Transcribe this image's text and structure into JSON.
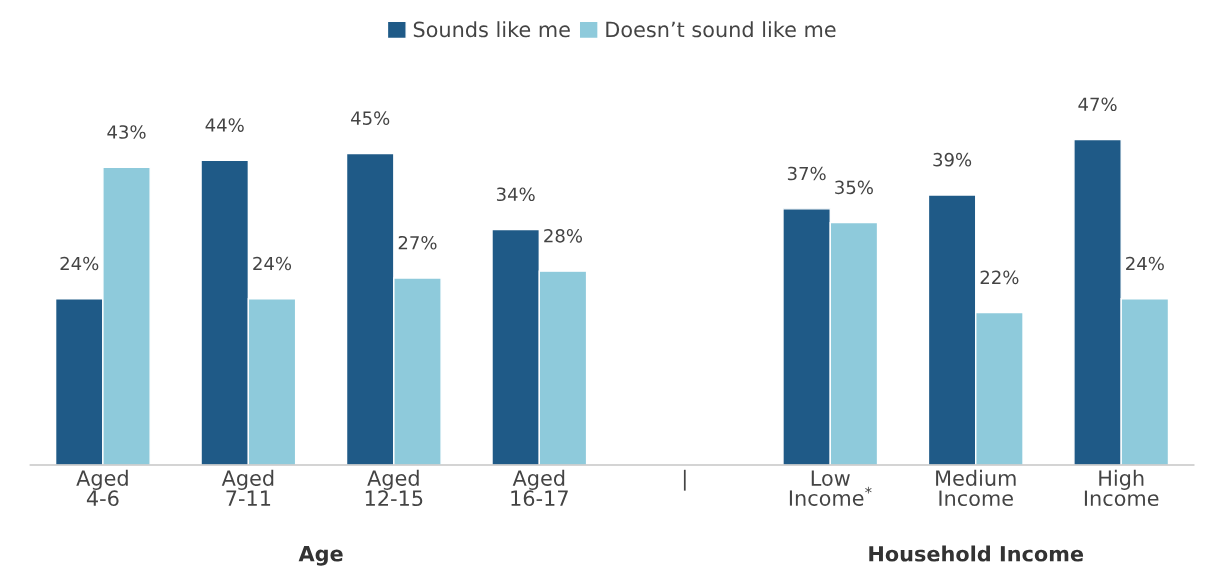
{
  "chart_data": {
    "type": "bar",
    "categories": [
      "Aged\n4-6",
      "Aged\n7-11",
      "Aged\n12-15",
      "Aged\n16-17",
      "|",
      "Low\nIncome$^{*}$",
      "Medium\nIncome",
      "High\nIncome"
    ],
    "series": [
      {
        "name": "Sounds like me",
        "color": "#1f5a87",
        "values": [
          24,
          44,
          45,
          34,
          null,
          37,
          39,
          47
        ],
        "value_labels": [
          "24%",
          "44%",
          "45%",
          "34%",
          null,
          "37%",
          "39%",
          "47%"
        ]
      },
      {
        "name": "Doesn’t sound like me",
        "color": "#8ecadb",
        "values": [
          43,
          24,
          27,
          28,
          null,
          35,
          22,
          24
        ],
        "value_labels": [
          "43%",
          "24%",
          "27%",
          "28%",
          null,
          "35%",
          "22%",
          "24%"
        ]
      }
    ],
    "annotations": [
      "Age",
      "Household Income"
    ],
    "legend": "top",
    "grid": false,
    "tick_labels": "x"
  }
}
